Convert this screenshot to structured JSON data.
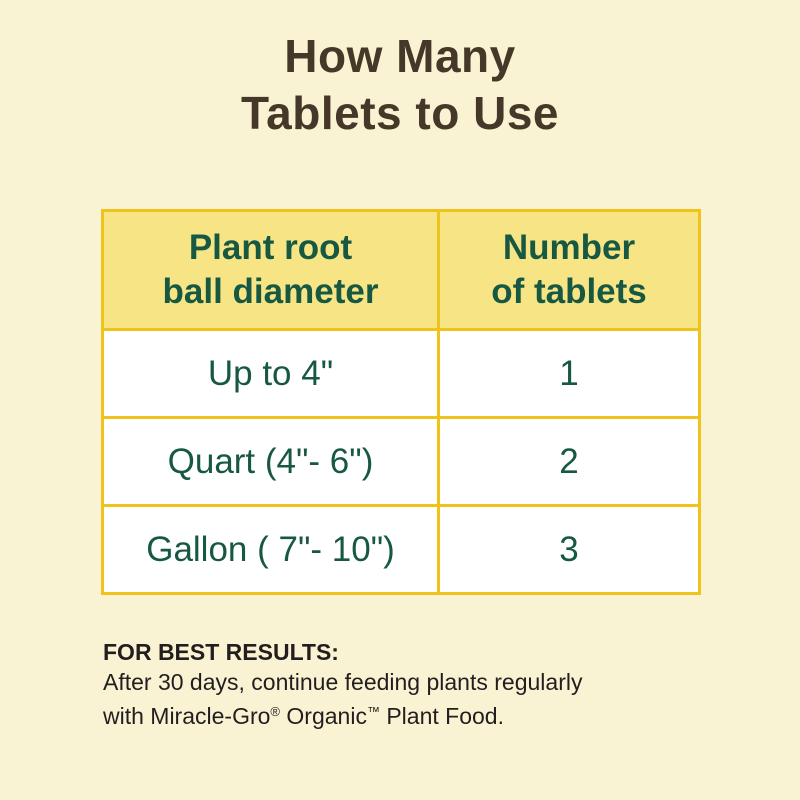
{
  "page": {
    "title_line1": "How Many",
    "title_line2": "Tablets to Use"
  },
  "colors": {
    "page_background": "#FAF3D3",
    "title_brown": "#453828",
    "table_border_gold": "#EFC31B",
    "header_yellow": "#F7E585",
    "text_green": "#175843",
    "cell_white": "#FFFFFF",
    "footer_text": "#221E1F"
  },
  "table": {
    "header": {
      "col1": {
        "line1": "Plant root",
        "line2": "ball diameter"
      },
      "col2": {
        "line1": "Number",
        "line2": "of tablets"
      }
    },
    "rows": [
      {
        "diameter": "Up to 4\"",
        "tablets": "1"
      },
      {
        "diameter": "Quart (4\"- 6\")",
        "tablets": "2"
      },
      {
        "diameter": "Gallon ( 7\"- 10\")",
        "tablets": "3"
      }
    ]
  },
  "footer": {
    "heading": "FOR BEST RESULTS:",
    "line1": "After 30 days, continue feeding plants regularly",
    "line2_parts": {
      "a": "with Miracle-Gro",
      "reg": "®",
      "b": " Organic",
      "tm": "™",
      "c": " Plant Food."
    }
  },
  "chart_data": {
    "type": "table",
    "title": "How Many Tablets to Use",
    "columns": [
      "Plant root ball diameter",
      "Number of tablets"
    ],
    "rows": [
      [
        "Up to 4\"",
        1
      ],
      [
        "Quart (4\"- 6\")",
        2
      ],
      [
        "Gallon ( 7\"- 10\")",
        3
      ]
    ],
    "note": "FOR BEST RESULTS: After 30 days, continue feeding plants regularly with Miracle-Gro® Organic™ Plant Food."
  }
}
